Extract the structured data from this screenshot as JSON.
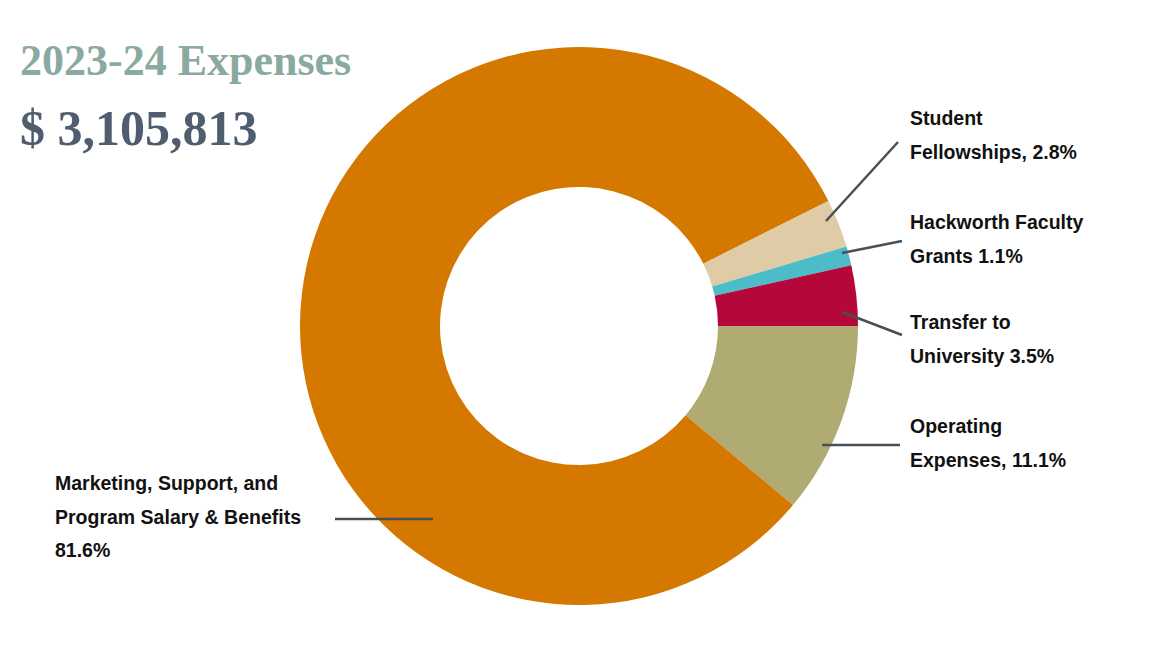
{
  "chart_data": {
    "type": "pie",
    "title": "2023-24 Expenses",
    "subtitle": "$ 3,105,813",
    "values": [
      11.1,
      81.6,
      2.8,
      1.1,
      3.5
    ],
    "value_labels": [
      [
        "Operating",
        "Expenses, 11.1%"
      ],
      [
        "Marketing, Support, and",
        "Program Salary & Benefits",
        "81.6%"
      ],
      [
        "Student",
        "Fellowships, 2.8%"
      ],
      [
        "Hackworth Faculty",
        "Grants 1.1%"
      ],
      [
        "Transfer to",
        "University 3.5%"
      ]
    ],
    "colors": [
      "#b0ab72",
      "#d47800",
      "#dfcba5",
      "#4bbcc8",
      "#b5083a"
    ]
  }
}
